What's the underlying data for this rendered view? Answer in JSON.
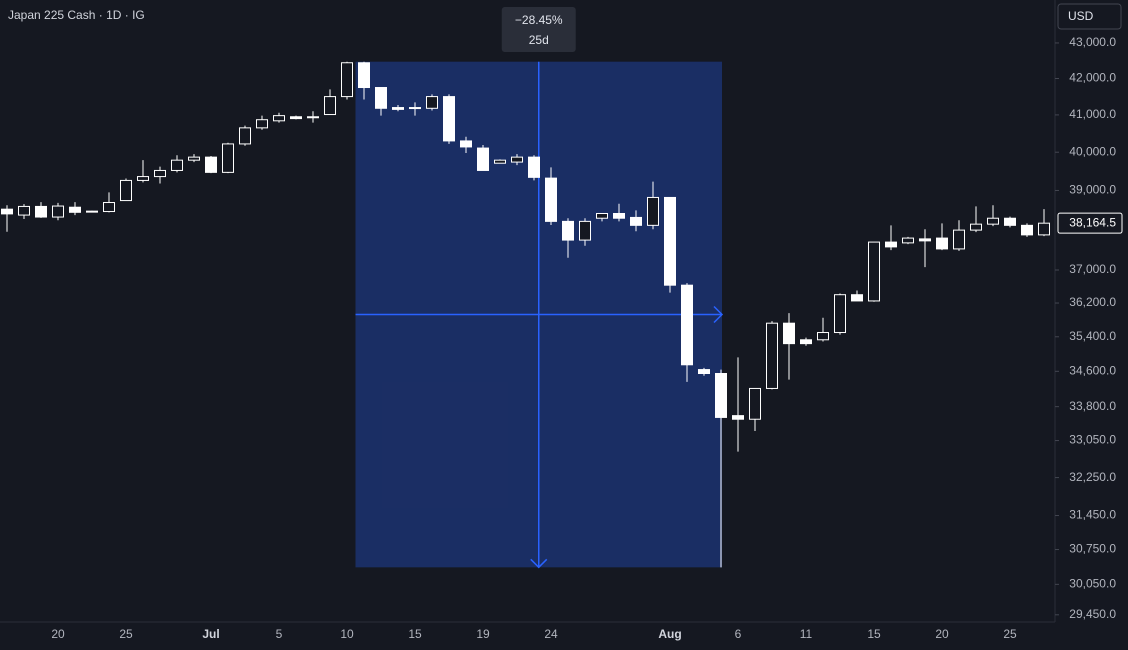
{
  "chart_data": {
    "type": "candlestick",
    "title": "Japan 225 Cash · 1D · IG",
    "currency": "USD",
    "categories": [
      null,
      null,
      null,
      "20",
      null,
      null,
      null,
      "25",
      null,
      null,
      null,
      null,
      "Jul",
      null,
      null,
      null,
      "5",
      null,
      null,
      null,
      "10",
      null,
      null,
      null,
      "15",
      null,
      null,
      null,
      "19",
      null,
      null,
      null,
      "24",
      null,
      null,
      null,
      null,
      null,
      null,
      "Aug",
      null,
      null,
      null,
      "6",
      null,
      null,
      null,
      "11",
      null,
      null,
      null,
      "15",
      null,
      null,
      null,
      "20",
      null,
      null,
      null,
      "25",
      null,
      null
    ],
    "open": [
      38520,
      38370,
      38590,
      38320,
      38570,
      38450,
      38460,
      38740,
      39260,
      39360,
      39520,
      39790,
      39870,
      39470,
      40220,
      40650,
      40840,
      40950,
      40930,
      41010,
      41500,
      42440,
      41750,
      41200,
      41180,
      41180,
      41500,
      40300,
      40110,
      39710,
      39740,
      39870,
      39320,
      38210,
      37740,
      38290,
      38410,
      38310,
      38110,
      38820,
      36630,
      34640,
      34550,
      33600,
      33520,
      34210,
      35720,
      35330,
      35330,
      35500,
      36400,
      36250,
      37690,
      37670,
      37770,
      37790,
      37520,
      37990,
      38140,
      38290,
      38110,
      37870
    ],
    "high": [
      38620,
      38650,
      38700,
      38680,
      38700,
      38480,
      38950,
      39310,
      39790,
      39620,
      39920,
      39950,
      39900,
      40250,
      40710,
      40980,
      41060,
      40980,
      41100,
      41700,
      42470,
      42470,
      41750,
      41270,
      41340,
      41560,
      41560,
      40410,
      40190,
      39810,
      39950,
      39920,
      39600,
      38290,
      38290,
      38410,
      38660,
      38490,
      39230,
      38820,
      36680,
      34680,
      34640,
      34920,
      34210,
      35770,
      35960,
      35380,
      35850,
      36430,
      36500,
      37690,
      38110,
      37820,
      38010,
      38160,
      38240,
      38590,
      38620,
      38330,
      38160,
      38520
    ],
    "low": [
      37950,
      38270,
      38300,
      38240,
      38370,
      38440,
      38440,
      38740,
      39210,
      39180,
      39470,
      39740,
      39450,
      39450,
      40170,
      40600,
      40790,
      40880,
      40790,
      41010,
      41420,
      41420,
      40980,
      41100,
      40980,
      41120,
      40220,
      39980,
      39520,
      39710,
      39660,
      39260,
      38120,
      37300,
      37600,
      38210,
      38210,
      37960,
      38010,
      36450,
      34360,
      34500,
      30390,
      32810,
      33260,
      34190,
      34410,
      35190,
      35290,
      35450,
      36250,
      36230,
      37490,
      37640,
      37070,
      37490,
      37470,
      37940,
      38090,
      38060,
      37820,
      37840
    ],
    "close": [
      38400,
      38590,
      38320,
      38600,
      38440,
      38470,
      38690,
      39260,
      39360,
      39520,
      39790,
      39870,
      39470,
      40220,
      40650,
      40870,
      40980,
      40900,
      40950,
      41500,
      42440,
      41750,
      41180,
      41150,
      41200,
      41500,
      40300,
      40140,
      39520,
      39790,
      39870,
      39340,
      38210,
      37740,
      38210,
      38410,
      38290,
      38110,
      38820,
      36630,
      34750,
      34550,
      33560,
      33520,
      34210,
      35720,
      35240,
      35240,
      35500,
      36400,
      36250,
      37690,
      37570,
      37790,
      37720,
      37520,
      37990,
      38140,
      38290,
      38110,
      37870,
      38164.5
    ],
    "ylim": [
      29310,
      44240
    ],
    "log_scale": true,
    "yticks": [
      {
        "value": 43000,
        "label": "43,000.0"
      },
      {
        "value": 42000,
        "label": "42,000.0"
      },
      {
        "value": 41000,
        "label": "41,000.0"
      },
      {
        "value": 40000,
        "label": "40,000.0"
      },
      {
        "value": 39000,
        "label": "39,000.0"
      },
      {
        "value": 37000,
        "label": "37,000.0"
      },
      {
        "value": 36200,
        "label": "36,200.0"
      },
      {
        "value": 35400,
        "label": "35,400.0"
      },
      {
        "value": 34600,
        "label": "34,600.0"
      },
      {
        "value": 33800,
        "label": "33,800.0"
      },
      {
        "value": 33050,
        "label": "33,050.0"
      },
      {
        "value": 32250,
        "label": "32,250.0"
      },
      {
        "value": 31450,
        "label": "31,450.0"
      },
      {
        "value": 30750,
        "label": "30,750.0"
      },
      {
        "value": 30050,
        "label": "30,050.0"
      },
      {
        "value": 29450,
        "label": "29,450.0"
      }
    ],
    "last_price": {
      "value": 38164.5,
      "label": "38,164.5"
    },
    "measure": {
      "change": "−28.45%",
      "duration": "25d"
    },
    "up_color": "#151821",
    "down_color": "#ffffff",
    "wick_color": "#ffffff",
    "measure_color": "#2962ff"
  }
}
